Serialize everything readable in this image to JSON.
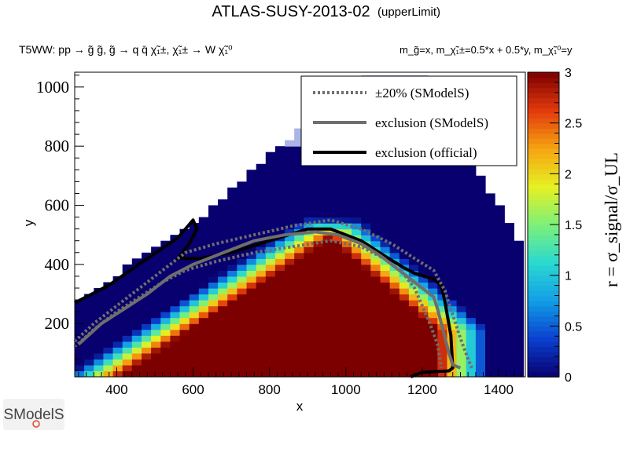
{
  "header": {
    "title": "ATLAS-SUSY-2013-02",
    "title_tag": "(upperLimit)",
    "process": "T5WW: pp → g̃ g̃, g̃ → q q̄ χ̃₁±, χ̃₁± → W χ̃₁⁰",
    "mass_relation": "m_g̃=x, m_χ̃₁±=0.5*x + 0.5*y, m_χ̃₁⁰=y"
  },
  "logo": {
    "text": "SModelS"
  },
  "chart_data": {
    "type": "heatmap",
    "xlabel": "x",
    "ylabel": "y",
    "zlabel": "r = σ_signal/σ_UL",
    "xlim": [
      290,
      1470
    ],
    "ylim": [
      20,
      1050
    ],
    "zlim": [
      0,
      3
    ],
    "x_ticks": [
      400,
      600,
      800,
      1000,
      1200,
      1400
    ],
    "y_ticks": [
      200,
      400,
      600,
      800,
      1000
    ],
    "z_ticks": [
      0,
      0.5,
      1,
      1.5,
      2,
      2.5,
      3
    ],
    "colorscale": [
      "#08006e",
      "#0a3fcf",
      "#129de6",
      "#2ad9d0",
      "#7df07a",
      "#e6f022",
      "#f6a412",
      "#e23a0c",
      "#7c0000"
    ],
    "excluded_region_color": "#aab4e6",
    "grid": {
      "cell_size_x": 25,
      "cell_size_y": 20,
      "x_start": 290,
      "y_start": 20,
      "boundary": [
        [
          290,
          20
        ],
        [
          290,
          270
        ],
        [
          620,
          560
        ],
        [
          880,
          860
        ],
        [
          1060,
          1040
        ],
        [
          1220,
          1040
        ],
        [
          1300,
          840
        ],
        [
          1360,
          680
        ],
        [
          1440,
          520
        ],
        [
          1470,
          440
        ],
        [
          1470,
          20
        ]
      ],
      "blue_above_diagonal": true
    },
    "legend": {
      "position": "top-right",
      "entries": [
        {
          "label": "±20% (SModelS)",
          "style": "dotted",
          "color": "#6e6e6e"
        },
        {
          "label": "exclusion (SModelS)",
          "style": "solid",
          "color": "#6e6e6e"
        },
        {
          "label": "exclusion (official)",
          "style": "solid",
          "color": "#000000"
        }
      ]
    },
    "series": [
      {
        "name": "exclusion (official)",
        "x": [
          290,
          380,
          480,
          560,
          600,
          610,
          590,
          560,
          620,
          700,
          800,
          900,
          960,
          1040,
          1100,
          1150,
          1180,
          1230,
          1250,
          1260,
          1275,
          1280,
          1270,
          1200,
          1170
        ],
        "y": [
          270,
          330,
          420,
          490,
          550,
          520,
          470,
          420,
          420,
          440,
          480,
          520,
          520,
          480,
          430,
          390,
          370,
          350,
          330,
          270,
          160,
          50,
          40,
          35,
          20
        ]
      },
      {
        "name": "exclusion (SModelS)",
        "x": [
          300,
          360,
          420,
          480,
          540,
          600,
          680,
          760,
          840,
          920,
          980,
          1040,
          1090,
          1140,
          1180,
          1210,
          1230,
          1240,
          1250,
          1260,
          1270,
          1280,
          1300
        ],
        "y": [
          130,
          200,
          250,
          300,
          360,
          400,
          440,
          480,
          500,
          510,
          500,
          470,
          430,
          380,
          340,
          310,
          290,
          250,
          200,
          150,
          100,
          60,
          50
        ]
      },
      {
        "name": "±20% (SModelS) upper",
        "x": [
          290,
          340,
          400,
          460,
          520,
          580,
          660,
          760,
          860,
          960,
          1040,
          1120,
          1180,
          1230,
          1260,
          1280,
          1300,
          1320,
          1330
        ],
        "y": [
          140,
          200,
          260,
          320,
          380,
          440,
          470,
          500,
          530,
          550,
          520,
          470,
          420,
          380,
          310,
          230,
          150,
          80,
          50
        ]
      },
      {
        "name": "±20% (SModelS) lower",
        "x": [
          290,
          340,
          400,
          460,
          520,
          580,
          660,
          760,
          860,
          960,
          1040,
          1100,
          1150,
          1180,
          1200,
          1220,
          1240,
          1250
        ],
        "y": [
          120,
          180,
          240,
          290,
          340,
          380,
          410,
          440,
          460,
          480,
          460,
          420,
          370,
          320,
          260,
          200,
          130,
          50
        ]
      }
    ]
  }
}
